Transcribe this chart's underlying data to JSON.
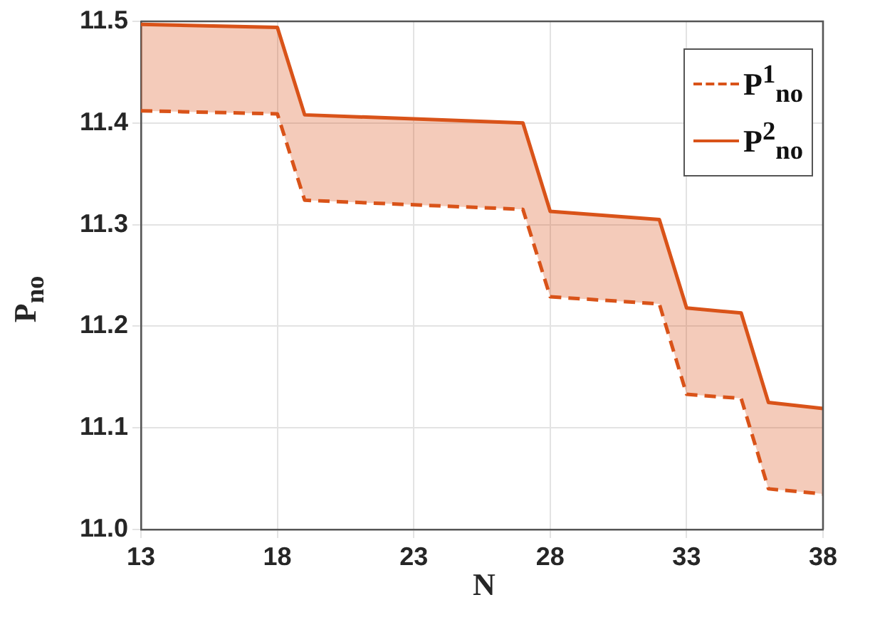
{
  "chart_data": {
    "type": "line",
    "xlabel": "N",
    "ylabel": "P$_{no}$",
    "x": [
      13,
      18,
      19,
      27,
      28,
      32,
      33,
      35,
      36,
      38
    ],
    "series": [
      {
        "name": "P$^{1}$$_{no}$",
        "color": "#d95319",
        "line_style": "dashed",
        "values": [
          11.412,
          11.409,
          11.324,
          11.315,
          11.229,
          11.222,
          11.133,
          11.129,
          11.04,
          11.035
        ]
      },
      {
        "name": "P$^{2}$$_{no}$",
        "color": "#d95319",
        "line_style": "solid",
        "values": [
          11.497,
          11.494,
          11.408,
          11.4,
          11.313,
          11.305,
          11.218,
          11.213,
          11.125,
          11.119
        ],
        "lower": [
          11.412,
          11.409,
          11.324,
          11.315,
          11.229,
          11.222,
          11.133,
          11.129,
          11.04,
          11.035
        ],
        "upper": [
          11.497,
          11.494,
          11.408,
          11.4,
          11.313,
          11.305,
          11.218,
          11.213,
          11.125,
          11.119
        ]
      }
    ],
    "xlim": [
      13,
      38
    ],
    "xticks": [
      13,
      18,
      23,
      28,
      33,
      38
    ],
    "ylim": [
      11.0,
      11.5
    ],
    "yticks": [
      {
        "value": 11.0,
        "label": "11.0"
      },
      11.1,
      11.2,
      11.3,
      11.4,
      11.5
    ],
    "grid": true,
    "legend": "top right",
    "marker": "none"
  }
}
